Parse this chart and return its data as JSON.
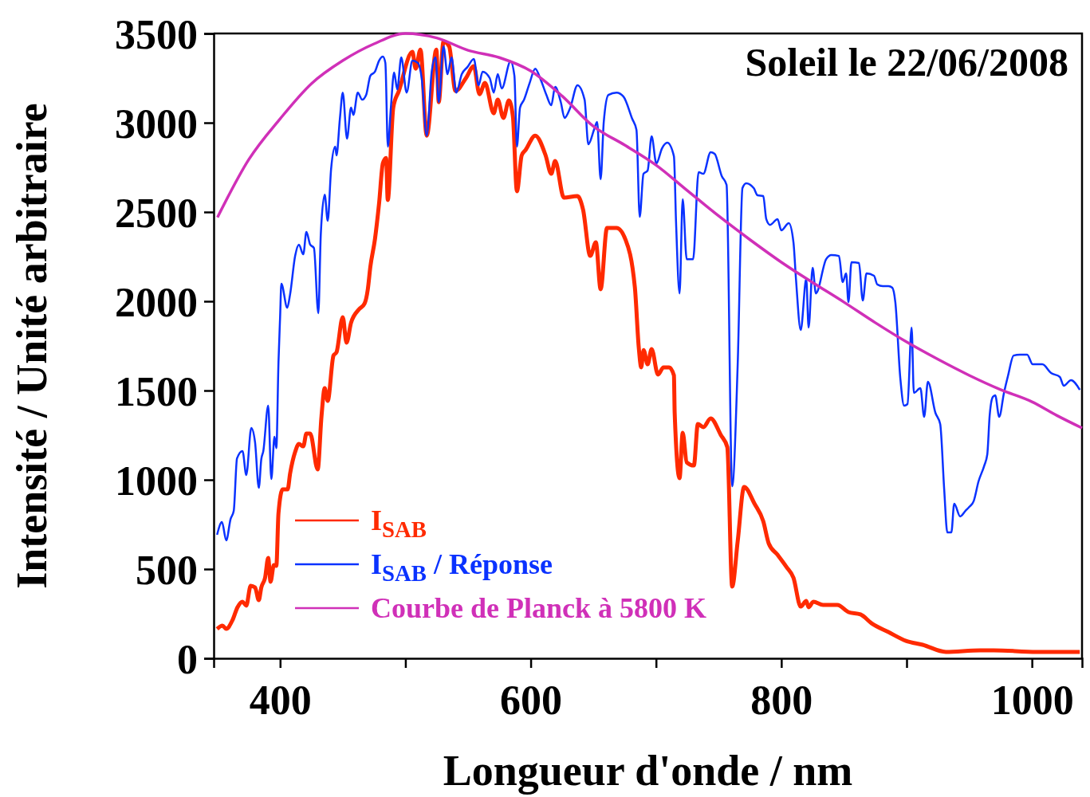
{
  "chart_data": {
    "type": "line",
    "xlabel": "Longueur d'onde / nm",
    "ylabel": "Intensité / Unité arbitraire",
    "annotations": [
      "Soleil le 22/06/2008"
    ],
    "xlim": [
      347,
      1040
    ],
    "ylim": [
      0,
      3500
    ],
    "xticks": [
      400,
      {
        "value": 500,
        "label": null
      },
      600,
      {
        "value": 700,
        "label": null
      },
      800,
      {
        "value": 900,
        "label": null
      },
      1000
    ],
    "yticks": [
      0,
      500,
      1000,
      1500,
      2000,
      2500,
      3000,
      3500
    ],
    "grid": false,
    "legend": "bottom left",
    "line_style": "solid",
    "marker": "none",
    "series": [
      {
        "name": "I$_{SAB}$",
        "color": "#ff2a00",
        "x": [
          349.7,
          354,
          357,
          362,
          366,
          370,
          373,
          376.5,
          380,
          383,
          385,
          388,
          390.5,
          392.4,
          395,
          397,
          398.7,
          402,
          406,
          408,
          412,
          415,
          418.5,
          421,
          424,
          430,
          433,
          435.6,
          438,
          442.6,
          445,
          450,
          453,
          456.6,
          463,
          467.4,
          470,
          472,
          475.7,
          479,
          482,
          484.6,
          485.9,
          490.3,
          494.8,
          505.6,
          508.2,
          512,
          517,
          524.7,
          526.6,
          530.4,
          534.9,
          540,
          548.3,
          554.6,
          559.1,
          563.5,
          570.5,
          573.7,
          578.2,
          582.6,
          585.8,
          589,
          592.8,
          596,
          603.6,
          611.9,
          616.4,
          619.5,
          626.5,
          637.3,
          641.8,
          647.5,
          652,
          655.8,
          660.9,
          668.5,
          675.5,
          683.1,
          686.3,
          688.2,
          690.1,
          693.3,
          696.5,
          701.6,
          706,
          710.5,
          714.3,
          714.9,
          718.8,
          721.3,
          724.5,
          730.2,
          733.4,
          737.8,
          743.6,
          751.8,
          756.9,
          760.8,
          765.2,
          770.3,
          778.6,
          785.6,
          790,
          797,
          804,
          809.7,
          815.5,
          819.9,
          821.8,
          825.6,
          833.3,
          844.7,
          853.6,
          863.2,
          872.1,
          885.5,
          899.5,
          912.8,
          931.3,
          958.6,
          969.5,
          1003.8,
          1038.2
        ],
        "values": [
          165,
          183,
          165,
          214,
          286,
          317,
          295,
          406,
          397,
          326,
          397,
          451,
          562,
          429,
          522,
          518,
          812,
          946,
          946,
          1036,
          1156,
          1201,
          1187,
          1259,
          1259,
          1058,
          1353,
          1513,
          1442,
          1696,
          1714,
          1911,
          1768,
          1879,
          1955,
          1987,
          2067,
          2192,
          2348,
          2549,
          2772,
          2803,
          2567,
          3085,
          3178,
          3397,
          3303,
          3410,
          2928,
          3410,
          3115,
          3455,
          3428,
          3178,
          3250,
          3317,
          3160,
          3223,
          3053,
          3129,
          3027,
          3125,
          3035,
          2616,
          2817,
          2848,
          2928,
          2817,
          2714,
          2786,
          2580,
          2589,
          2513,
          2254,
          2330,
          2067,
          2411,
          2411,
          2348,
          2080,
          1736,
          1630,
          1727,
          1647,
          1732,
          1589,
          1630,
          1630,
          1585,
          1375,
          1009,
          1263,
          1098,
          1080,
          1312,
          1295,
          1344,
          1250,
          1183,
          402,
          656,
          960,
          866,
          768,
          643,
          580,
          513,
          451,
          290,
          321,
          286,
          317,
          299,
          299,
          259,
          246,
          196,
          147,
          98,
          76,
          36,
          45,
          45,
          36,
          36
        ]
      },
      {
        "name": "I$_{SAB}$ / Réponse",
        "color": "#0a32ff",
        "x": [
          349.7,
          353.6,
          357,
          360.5,
          363,
          365.6,
          370,
          373,
          377,
          380,
          383,
          385,
          386.6,
          390.5,
          393,
          395.5,
          397,
          398.7,
          400,
          401,
          405.7,
          408,
          412,
          415,
          418.5,
          421,
          424,
          427,
          430.5,
          432.5,
          435.6,
          438,
          440.7,
          444,
          445,
          447.7,
          450,
          453.4,
          456.6,
          458.5,
          462,
          465.5,
          468.7,
          472,
          475.7,
          479,
          482,
          484,
          486,
          488.4,
          491,
          493.5,
          496.7,
          501,
          505.6,
          510,
          513,
          517,
          521,
          524,
          526.6,
          530.4,
          533.6,
          536.8,
          540.6,
          545,
          549.5,
          554.6,
          558.4,
          561.6,
          567.3,
          570.5,
          573.7,
          576.9,
          583.9,
          587,
          589,
          591.5,
          594.7,
          599,
          603.6,
          608,
          612.5,
          616.4,
          619.5,
          624,
          627,
          631.6,
          637.3,
          643,
          646,
          650.7,
          653,
          655.8,
          658.3,
          662,
          668.5,
          674,
          681,
          684.4,
          687,
          690,
          693.3,
          696.5,
          700.3,
          704.8,
          709,
          714.3,
          716,
          718.8,
          721.3,
          724.5,
          729.6,
          734,
          737.8,
          743.6,
          746.8,
          752.5,
          756.3,
          760.8,
          765.2,
          769,
          772,
          778,
          781,
          785.6,
          788,
          791,
          797,
          800,
          806,
          809.7,
          811.7,
          815.5,
          819.9,
          821.8,
          825,
          827.6,
          835.8,
          840,
          846,
          849,
          851.7,
          853.6,
          856,
          862,
          865,
          868,
          874,
          876.6,
          881,
          885.5,
          888.6,
          891,
          895,
          898,
          900.7,
          904,
          905.8,
          911,
          914,
          917,
          923,
          926.8,
          930,
          932.5,
          935.7,
          938,
          942.7,
          947,
          950,
          953.5,
          957.4,
          962,
          964.4,
          966.3,
          968.8,
          970.7,
          973.9,
          977.7,
          981,
          985.4,
          990.4,
          996.2,
          1000.6,
          1008.3,
          1015.3,
          1022.3,
          1025.4,
          1031.2,
          1038.2
        ],
        "values": [
          692,
          763,
          661,
          781,
          826,
          1120,
          1161,
          1027,
          1290,
          1210,
          955,
          1116,
          1161,
          1415,
          1004,
          1241,
          1178,
          1656,
          1911,
          2098,
          1964,
          2040,
          2254,
          2317,
          2263,
          2388,
          2317,
          2299,
          1933,
          2379,
          2597,
          2451,
          2741,
          2866,
          2817,
          3022,
          3169,
          2911,
          3085,
          3044,
          3169,
          3129,
          3156,
          3263,
          3286,
          3348,
          3370,
          3335,
          2866,
          3085,
          3281,
          3187,
          3366,
          3169,
          3348,
          3335,
          3250,
          2928,
          3286,
          3366,
          3116,
          3428,
          3272,
          3366,
          3169,
          3272,
          3312,
          3357,
          3210,
          3286,
          3250,
          3169,
          3272,
          3192,
          3344,
          3263,
          2866,
          3085,
          3129,
          3219,
          3303,
          3241,
          3156,
          3098,
          3201,
          3116,
          3027,
          3085,
          3210,
          3129,
          2879,
          2964,
          3004,
          2683,
          3004,
          3156,
          3169,
          3147,
          3022,
          2960,
          2473,
          2714,
          2732,
          2924,
          2772,
          2857,
          2888,
          2812,
          2442,
          2044,
          2571,
          2236,
          2236,
          2723,
          2714,
          2835,
          2826,
          2701,
          2652,
          964,
          1647,
          2634,
          2661,
          2634,
          2594,
          2589,
          2460,
          2428,
          2460,
          2397,
          2437,
          2330,
          2125,
          1839,
          2125,
          1853,
          2187,
          2044,
          2236,
          2259,
          2254,
          2107,
          2156,
          1995,
          2219,
          2214,
          2004,
          2156,
          2143,
          2094,
          2085,
          2085,
          2076,
          1995,
          1567,
          1415,
          1424,
          1853,
          1487,
          1513,
          1353,
          1549,
          1375,
          1312,
          946,
          705,
          705,
          866,
          795,
          826,
          848,
          880,
          991,
          1080,
          1143,
          1361,
          1464,
          1473,
          1353,
          1487,
          1585,
          1696,
          1701,
          1701,
          1647,
          1647,
          1598,
          1576,
          1527,
          1558,
          1504
        ]
      },
      {
        "name": "Courbe de Planck à 5800 K",
        "color": "#d030b8",
        "x": [
          350,
          375,
          400,
          425,
          450,
          475,
          500,
          525,
          550,
          575,
          600,
          625,
          650,
          675,
          700,
          725,
          750,
          775,
          800,
          825,
          850,
          875,
          900,
          925,
          950,
          975,
          1000,
          1020,
          1040
        ],
        "values": [
          2470,
          2794,
          3022,
          3219,
          3348,
          3442,
          3500,
          3475,
          3406,
          3365,
          3290,
          3150,
          2980,
          2875,
          2763,
          2620,
          2478,
          2345,
          2219,
          2105,
          1995,
          1880,
          1772,
          1675,
          1585,
          1505,
          1437,
          1360,
          1290
        ]
      }
    ]
  }
}
